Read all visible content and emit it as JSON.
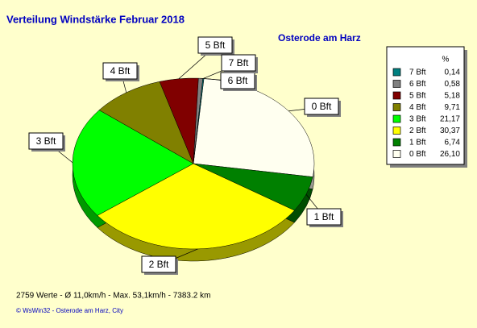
{
  "chart_data": {
    "type": "pie",
    "title": "Verteilung Windstärke  Februar 2018",
    "subtitle": "Osterode am Harz",
    "legend_title": "%",
    "categories": [
      "0 Bft",
      "1 Bft",
      "2 Bft",
      "3 Bft",
      "4 Bft",
      "5 Bft",
      "6 Bft",
      "7 Bft"
    ],
    "values": [
      26.1,
      6.74,
      30.37,
      21.17,
      9.71,
      5.18,
      0.58,
      0.14
    ],
    "value_labels": [
      "26,10",
      "6,74",
      "30,37",
      "21,17",
      "9,71",
      "5,18",
      "0,58",
      "0,14"
    ],
    "colors": [
      "#fffff0",
      "#008000",
      "#ffff00",
      "#00ff00",
      "#808000",
      "#800000",
      "#808080",
      "#008080"
    ],
    "footer": "2759 Werte   -   Ø 11,0km/h  -  Max. 53,1km/h  -   7383.2 km",
    "credit": "© WsWin32  -  Osterode am Harz, City"
  }
}
